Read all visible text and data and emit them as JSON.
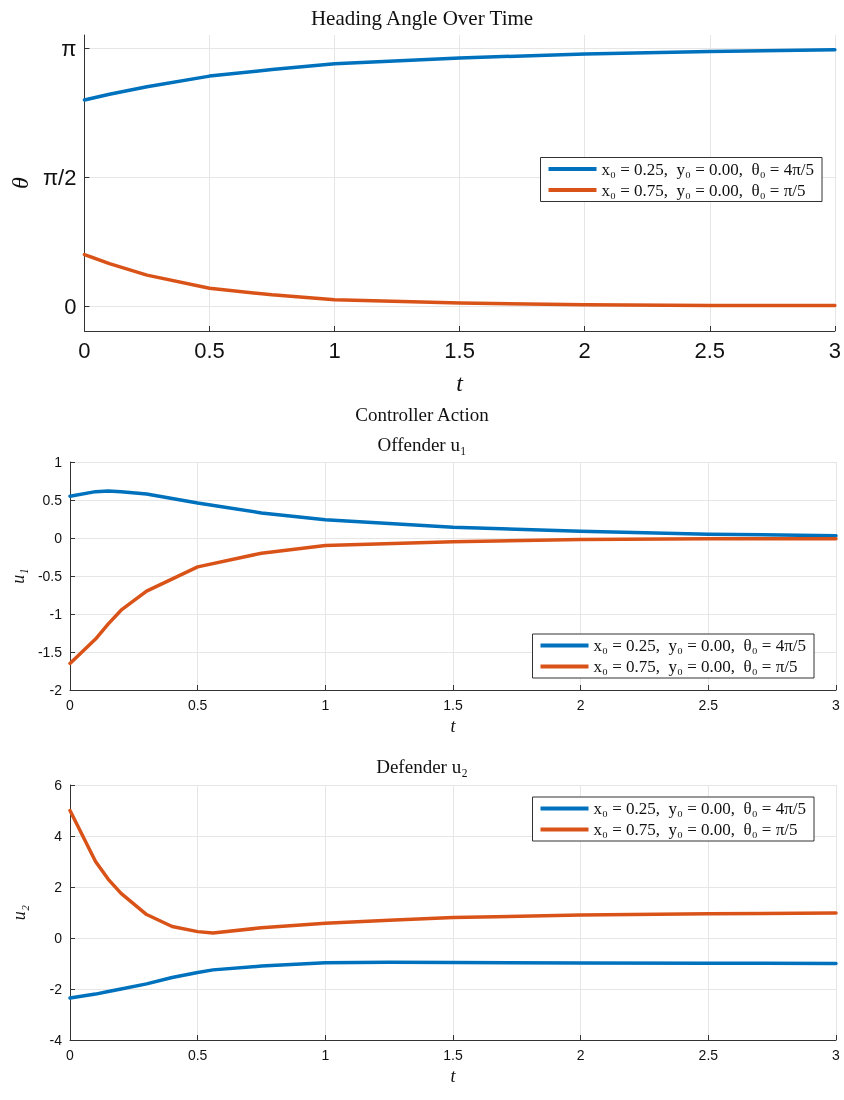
{
  "chart_data": [
    {
      "type": "line",
      "title": "Heading Angle Over Time",
      "xlabel": "t",
      "ylabel": "θ",
      "xlim": [
        0,
        3
      ],
      "xticks": [
        0,
        0.5,
        1,
        1.5,
        2,
        2.5,
        3
      ],
      "ylim": [
        -0.3,
        3.3
      ],
      "yticks": [
        0,
        {
          "value": 1.5708,
          "label": "π/2"
        },
        {
          "value": 3.1416,
          "label": "π"
        }
      ],
      "grid": true,
      "legend": "right",
      "marker": "none",
      "line_style": "solid",
      "x": [
        0,
        0.1,
        0.25,
        0.5,
        0.75,
        1,
        1.5,
        2,
        2.5,
        3
      ],
      "series": [
        {
          "name": "x₀ = 0.25,  y₀ = 0.00,  θ₀ = 4π/5",
          "color": "#0072bd",
          "values": [
            2.51,
            2.58,
            2.67,
            2.8,
            2.88,
            2.95,
            3.02,
            3.07,
            3.1,
            3.12
          ]
        },
        {
          "name": "x₀ = 0.75,  y₀ = 0.00,  θ₀ = π/5",
          "color": "#d95319",
          "values": [
            0.63,
            0.52,
            0.38,
            0.22,
            0.14,
            0.08,
            0.04,
            0.02,
            0.01,
            0.01
          ]
        }
      ]
    },
    {
      "type": "line",
      "subtitle": "Controller Action",
      "title": "Offender u₁",
      "xlabel": "t",
      "ylabel": "u₁",
      "xlim": [
        0,
        3
      ],
      "xticks": [
        0,
        0.5,
        1,
        1.5,
        2,
        2.5,
        3
      ],
      "ylim": [
        -2,
        1
      ],
      "yticks": [
        -2,
        -1.5,
        -1,
        -0.5,
        0,
        0.5,
        1
      ],
      "grid": true,
      "legend": "bottom right",
      "marker": "none",
      "line_style": "solid",
      "x": [
        0,
        0.1,
        0.15,
        0.2,
        0.3,
        0.5,
        0.75,
        1,
        1.5,
        2,
        2.5,
        3
      ],
      "series": [
        {
          "name": "x₀ = 0.25,  y₀ = 0.00,  θ₀ = 4π/5",
          "color": "#0072bd",
          "values": [
            0.55,
            0.61,
            0.62,
            0.61,
            0.58,
            0.46,
            0.33,
            0.24,
            0.14,
            0.09,
            0.05,
            0.03
          ]
        },
        {
          "name": "x₀ = 0.75,  y₀ = 0.00,  θ₀ = π/5",
          "color": "#d95319",
          "values": [
            -1.65,
            -1.33,
            -1.13,
            -0.95,
            -0.7,
            -0.38,
            -0.2,
            -0.1,
            -0.05,
            -0.02,
            -0.01,
            -0.01
          ]
        }
      ]
    },
    {
      "type": "line",
      "title": "Defender u₂",
      "xlabel": "t",
      "ylabel": "u₂",
      "xlim": [
        0,
        3
      ],
      "xticks": [
        0,
        0.5,
        1,
        1.5,
        2,
        2.5,
        3
      ],
      "ylim": [
        -4,
        6
      ],
      "yticks": [
        -4,
        -2,
        0,
        2,
        4,
        6
      ],
      "grid": true,
      "legend": "top right",
      "marker": "none",
      "line_style": "solid",
      "x": [
        0,
        0.1,
        0.15,
        0.2,
        0.3,
        0.4,
        0.5,
        0.56,
        0.75,
        1,
        1.25,
        1.5,
        2,
        2.5,
        3
      ],
      "series": [
        {
          "name": "x₀ = 0.25,  y₀ = 0.00,  θ₀ = 4π/5",
          "color": "#0072bd",
          "values": [
            -2.35,
            -2.2,
            -2.1,
            -2.0,
            -1.8,
            -1.55,
            -1.35,
            -1.25,
            -1.1,
            -0.97,
            -0.95,
            -0.96,
            -0.98,
            -0.99,
            -1.0
          ]
        },
        {
          "name": "x₀ = 0.75,  y₀ = 0.00,  θ₀ = π/5",
          "color": "#d95319",
          "values": [
            5.0,
            3.0,
            2.3,
            1.75,
            0.92,
            0.45,
            0.25,
            0.2,
            0.4,
            0.58,
            0.7,
            0.8,
            0.9,
            0.95,
            0.98
          ]
        }
      ]
    }
  ]
}
